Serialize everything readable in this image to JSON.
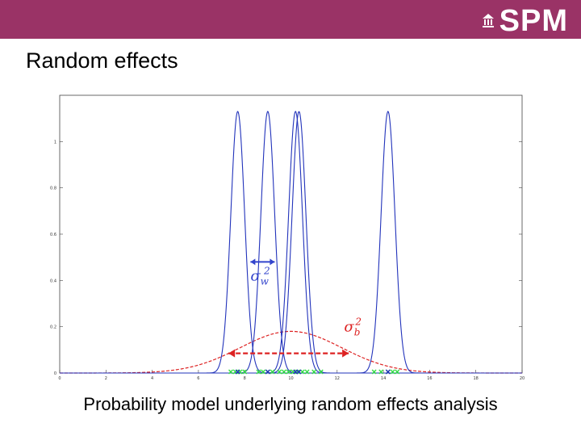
{
  "header": {
    "logo_text": "SPM",
    "logo_icon": "building-icon",
    "bar_color": "#9a3366"
  },
  "title": "Random effects",
  "caption": "Probability model underlying random effects analysis",
  "chart_data": {
    "type": "line",
    "title": "",
    "xlabel": "",
    "ylabel": "",
    "xlim": [
      0,
      20
    ],
    "ylim": [
      0,
      1.2
    ],
    "x_ticks": [
      0,
      2,
      4,
      6,
      8,
      10,
      12,
      14,
      16,
      18,
      20
    ],
    "y_ticks": [
      0,
      0.2,
      0.4,
      0.6,
      0.8,
      1
    ],
    "grid": false,
    "within_sigma": 0.3,
    "between": {
      "mean": 10,
      "sigma": 2.2
    },
    "series": [
      {
        "mean": 7.7,
        "peak": 1.13
      },
      {
        "mean": 9.0,
        "peak": 1.13
      },
      {
        "mean": 10.2,
        "peak": 1.13
      },
      {
        "mean": 10.35,
        "peak": 1.13
      },
      {
        "mean": 14.2,
        "peak": 1.13
      }
    ],
    "annotations": {
      "sigma_w": {
        "symbol": "σ",
        "sub": "w",
        "sup": "2",
        "color": "#3344cc"
      },
      "sigma_b": {
        "symbol": "σ",
        "sub": "b",
        "sup": "2",
        "color": "#dd2222"
      }
    },
    "colors": {
      "within": "#2233bb",
      "between": "#dd2222",
      "points": "#33dd44"
    },
    "within_arrow": {
      "from": 8.25,
      "to": 9.3,
      "y": 0.48
    },
    "between_arrow": {
      "from": 7.3,
      "to": 12.5,
      "y": 0.085
    },
    "samples": [
      7.4,
      7.6,
      7.8,
      8.0,
      8.6,
      8.8,
      9.0,
      9.2,
      9.5,
      9.7,
      9.9,
      10.1,
      10.3,
      10.5,
      10.7,
      11.0,
      11.3,
      13.6,
      13.9,
      14.2,
      14.4,
      14.6
    ],
    "sample_marks": [
      7.7,
      9.0,
      10.2,
      10.35,
      14.2
    ]
  }
}
